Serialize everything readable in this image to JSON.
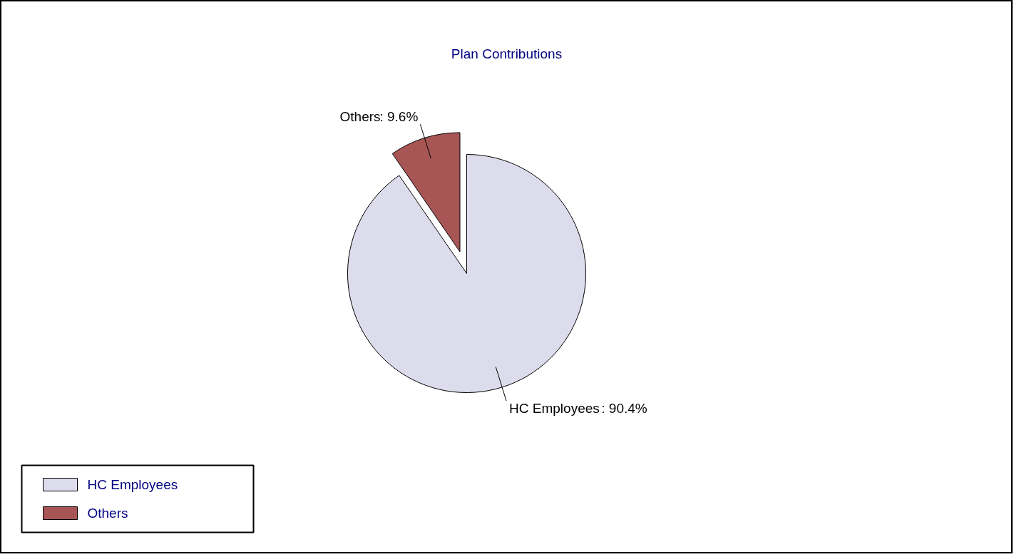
{
  "chart_data": {
    "type": "pie",
    "title": "Plan Contributions",
    "categories": [
      "HC Employees",
      "Others"
    ],
    "values": [
      90.4,
      9.6
    ],
    "value_labels": [
      ": 90.4%",
      ": 9.6%"
    ],
    "colors": [
      "#dcdcec",
      "#a85555"
    ],
    "legend": "bottom left"
  }
}
